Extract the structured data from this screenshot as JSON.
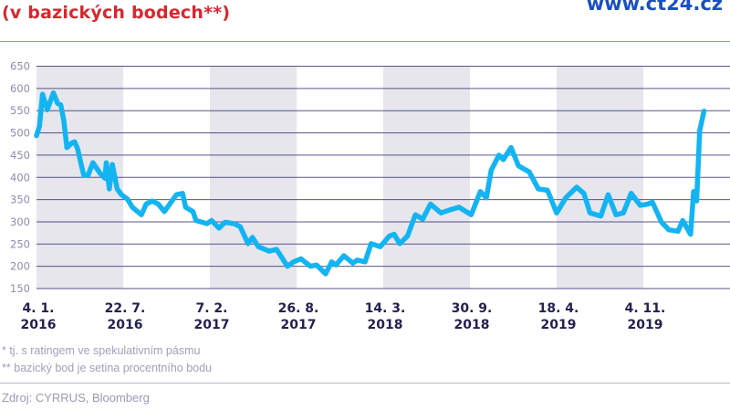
{
  "header": {
    "title_line2": "(v bazických bodech**)",
    "logo_text": "www.ct24.cz"
  },
  "footer": {
    "note1": "* tj. s ratingem ve spekulativním pásmu",
    "note2": "** bazický bod je setina procentního bodu",
    "source": "Zdroj: CYRRUS, Bloomberg"
  },
  "colors": {
    "title": "#d9262e",
    "logo": "#1a4fc4",
    "line": "#13b4f2",
    "band": "#e6e6ec",
    "grid": "#3a3a78"
  },
  "chart_data": {
    "type": "line",
    "title": "(v bazických bodech**)",
    "xlabel": "",
    "ylabel": "",
    "ylim": [
      150,
      650
    ],
    "yticks": [
      "650",
      "600",
      "550",
      "500",
      "450",
      "400",
      "350",
      "300",
      "250",
      "200",
      "150"
    ],
    "xlim": [
      "2016-01-04",
      "2020-05-22"
    ],
    "xticks": [
      {
        "date": "2016-01-04",
        "line1": "4. 1.",
        "line2": "2016"
      },
      {
        "date": "2016-07-22",
        "line1": "22. 7.",
        "line2": "2016"
      },
      {
        "date": "2017-02-07",
        "line1": "7. 2.",
        "line2": "2017"
      },
      {
        "date": "2017-08-26",
        "line1": "26. 8.",
        "line2": "2017"
      },
      {
        "date": "2018-03-14",
        "line1": "14. 3.",
        "line2": "2018"
      },
      {
        "date": "2018-09-30",
        "line1": "30. 9.",
        "line2": "2018"
      },
      {
        "date": "2019-04-18",
        "line1": "18. 4.",
        "line2": "2019"
      },
      {
        "date": "2019-11-04",
        "line1": "4. 11.",
        "line2": "2019"
      }
    ],
    "grid": true,
    "shaded_bands": "alternating between x ticks",
    "series": [
      {
        "points": [
          [
            "2016-01-04",
            494
          ],
          [
            "2016-01-11",
            515
          ],
          [
            "2016-01-18",
            587
          ],
          [
            "2016-01-29",
            552
          ],
          [
            "2016-02-12",
            590
          ],
          [
            "2016-02-22",
            566
          ],
          [
            "2016-02-29",
            563
          ],
          [
            "2016-03-07",
            528
          ],
          [
            "2016-03-14",
            467
          ],
          [
            "2016-03-25",
            477
          ],
          [
            "2016-04-01",
            480
          ],
          [
            "2016-04-08",
            464
          ],
          [
            "2016-04-15",
            433
          ],
          [
            "2016-04-22",
            405
          ],
          [
            "2016-05-02",
            405
          ],
          [
            "2016-05-13",
            433
          ],
          [
            "2016-05-30",
            409
          ],
          [
            "2016-06-10",
            398
          ],
          [
            "2016-06-13",
            433
          ],
          [
            "2016-06-20",
            374
          ],
          [
            "2016-06-27",
            429
          ],
          [
            "2016-07-08",
            374
          ],
          [
            "2016-07-18",
            361
          ],
          [
            "2016-08-01",
            351
          ],
          [
            "2016-08-12",
            333
          ],
          [
            "2016-09-02",
            316
          ],
          [
            "2016-09-13",
            340
          ],
          [
            "2016-09-27",
            347
          ],
          [
            "2016-10-11",
            340
          ],
          [
            "2016-10-25",
            323
          ],
          [
            "2016-11-22",
            361
          ],
          [
            "2016-12-06",
            364
          ],
          [
            "2016-12-13",
            333
          ],
          [
            "2016-12-30",
            323
          ],
          [
            "2017-01-06",
            303
          ],
          [
            "2017-01-31",
            296
          ],
          [
            "2017-02-11",
            303
          ],
          [
            "2017-02-28",
            286
          ],
          [
            "2017-03-14",
            299
          ],
          [
            "2017-04-04",
            296
          ],
          [
            "2017-04-18",
            289
          ],
          [
            "2017-05-06",
            251
          ],
          [
            "2017-05-16",
            265
          ],
          [
            "2017-05-30",
            244
          ],
          [
            "2017-06-24",
            234
          ],
          [
            "2017-07-11",
            238
          ],
          [
            "2017-08-05",
            200
          ],
          [
            "2017-08-19",
            210
          ],
          [
            "2017-09-05",
            217
          ],
          [
            "2017-09-27",
            200
          ],
          [
            "2017-10-11",
            203
          ],
          [
            "2017-11-01",
            183
          ],
          [
            "2017-11-15",
            210
          ],
          [
            "2017-11-25",
            203
          ],
          [
            "2017-12-13",
            224
          ],
          [
            "2018-01-03",
            207
          ],
          [
            "2018-01-13",
            214
          ],
          [
            "2018-01-31",
            210
          ],
          [
            "2018-02-14",
            251
          ],
          [
            "2018-03-07",
            244
          ],
          [
            "2018-03-28",
            268
          ],
          [
            "2018-04-08",
            272
          ],
          [
            "2018-04-21",
            251
          ],
          [
            "2018-05-09",
            268
          ],
          [
            "2018-05-27",
            316
          ],
          [
            "2018-06-13",
            306
          ],
          [
            "2018-07-01",
            340
          ],
          [
            "2018-07-25",
            320
          ],
          [
            "2018-08-15",
            327
          ],
          [
            "2018-09-05",
            333
          ],
          [
            "2018-10-03",
            316
          ],
          [
            "2018-10-24",
            368
          ],
          [
            "2018-11-07",
            354
          ],
          [
            "2018-11-18",
            416
          ],
          [
            "2018-12-06",
            450
          ],
          [
            "2018-12-16",
            440
          ],
          [
            "2019-01-03",
            467
          ],
          [
            "2019-01-20",
            426
          ],
          [
            "2019-02-14",
            412
          ],
          [
            "2019-03-07",
            374
          ],
          [
            "2019-03-28",
            371
          ],
          [
            "2019-04-18",
            320
          ],
          [
            "2019-05-09",
            354
          ],
          [
            "2019-06-03",
            378
          ],
          [
            "2019-06-20",
            364
          ],
          [
            "2019-07-04",
            320
          ],
          [
            "2019-07-29",
            313
          ],
          [
            "2019-08-15",
            361
          ],
          [
            "2019-09-02",
            316
          ],
          [
            "2019-09-19",
            320
          ],
          [
            "2019-10-07",
            364
          ],
          [
            "2019-10-28",
            337
          ],
          [
            "2019-11-14",
            340
          ],
          [
            "2019-11-25",
            344
          ],
          [
            "2019-12-16",
            299
          ],
          [
            "2020-01-02",
            282
          ],
          [
            "2020-01-23",
            279
          ],
          [
            "2020-02-03",
            303
          ],
          [
            "2020-02-21",
            272
          ],
          [
            "2020-02-28",
            368
          ],
          [
            "2020-03-06",
            347
          ],
          [
            "2020-03-13",
            505
          ],
          [
            "2020-03-23",
            549
          ]
        ]
      }
    ]
  }
}
